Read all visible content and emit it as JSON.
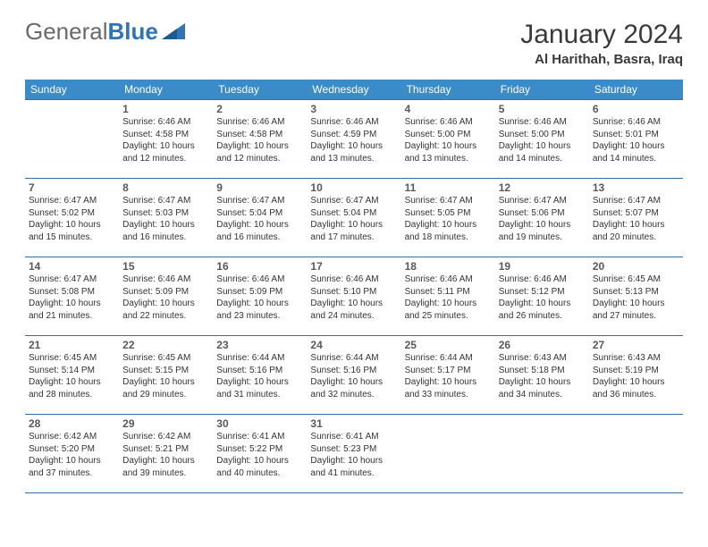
{
  "logo": {
    "text_general": "General",
    "text_blue": "Blue"
  },
  "title": "January 2024",
  "location": "Al Harithah, Basra, Iraq",
  "weekday_headers": [
    "Sunday",
    "Monday",
    "Tuesday",
    "Wednesday",
    "Thursday",
    "Friday",
    "Saturday"
  ],
  "colors": {
    "header_bg": "#3b8bc9",
    "header_text": "#ffffff",
    "cell_border": "#2d6fa8",
    "day_num": "#595959",
    "body_text": "#333333",
    "logo_gray": "#6a6a6a",
    "logo_blue": "#2d75b5"
  },
  "typography": {
    "title_fontsize": 30,
    "location_fontsize": 15,
    "header_fontsize": 12,
    "daynum_fontsize": 12,
    "body_fontsize": 10
  },
  "start_weekday": 1,
  "num_days": 31,
  "days": [
    {
      "n": 1,
      "sunrise": "6:46 AM",
      "sunset": "4:58 PM",
      "daylight": "10 hours and 12 minutes."
    },
    {
      "n": 2,
      "sunrise": "6:46 AM",
      "sunset": "4:58 PM",
      "daylight": "10 hours and 12 minutes."
    },
    {
      "n": 3,
      "sunrise": "6:46 AM",
      "sunset": "4:59 PM",
      "daylight": "10 hours and 13 minutes."
    },
    {
      "n": 4,
      "sunrise": "6:46 AM",
      "sunset": "5:00 PM",
      "daylight": "10 hours and 13 minutes."
    },
    {
      "n": 5,
      "sunrise": "6:46 AM",
      "sunset": "5:00 PM",
      "daylight": "10 hours and 14 minutes."
    },
    {
      "n": 6,
      "sunrise": "6:46 AM",
      "sunset": "5:01 PM",
      "daylight": "10 hours and 14 minutes."
    },
    {
      "n": 7,
      "sunrise": "6:47 AM",
      "sunset": "5:02 PM",
      "daylight": "10 hours and 15 minutes."
    },
    {
      "n": 8,
      "sunrise": "6:47 AM",
      "sunset": "5:03 PM",
      "daylight": "10 hours and 16 minutes."
    },
    {
      "n": 9,
      "sunrise": "6:47 AM",
      "sunset": "5:04 PM",
      "daylight": "10 hours and 16 minutes."
    },
    {
      "n": 10,
      "sunrise": "6:47 AM",
      "sunset": "5:04 PM",
      "daylight": "10 hours and 17 minutes."
    },
    {
      "n": 11,
      "sunrise": "6:47 AM",
      "sunset": "5:05 PM",
      "daylight": "10 hours and 18 minutes."
    },
    {
      "n": 12,
      "sunrise": "6:47 AM",
      "sunset": "5:06 PM",
      "daylight": "10 hours and 19 minutes."
    },
    {
      "n": 13,
      "sunrise": "6:47 AM",
      "sunset": "5:07 PM",
      "daylight": "10 hours and 20 minutes."
    },
    {
      "n": 14,
      "sunrise": "6:47 AM",
      "sunset": "5:08 PM",
      "daylight": "10 hours and 21 minutes."
    },
    {
      "n": 15,
      "sunrise": "6:46 AM",
      "sunset": "5:09 PM",
      "daylight": "10 hours and 22 minutes."
    },
    {
      "n": 16,
      "sunrise": "6:46 AM",
      "sunset": "5:09 PM",
      "daylight": "10 hours and 23 minutes."
    },
    {
      "n": 17,
      "sunrise": "6:46 AM",
      "sunset": "5:10 PM",
      "daylight": "10 hours and 24 minutes."
    },
    {
      "n": 18,
      "sunrise": "6:46 AM",
      "sunset": "5:11 PM",
      "daylight": "10 hours and 25 minutes."
    },
    {
      "n": 19,
      "sunrise": "6:46 AM",
      "sunset": "5:12 PM",
      "daylight": "10 hours and 26 minutes."
    },
    {
      "n": 20,
      "sunrise": "6:45 AM",
      "sunset": "5:13 PM",
      "daylight": "10 hours and 27 minutes."
    },
    {
      "n": 21,
      "sunrise": "6:45 AM",
      "sunset": "5:14 PM",
      "daylight": "10 hours and 28 minutes."
    },
    {
      "n": 22,
      "sunrise": "6:45 AM",
      "sunset": "5:15 PM",
      "daylight": "10 hours and 29 minutes."
    },
    {
      "n": 23,
      "sunrise": "6:44 AM",
      "sunset": "5:16 PM",
      "daylight": "10 hours and 31 minutes."
    },
    {
      "n": 24,
      "sunrise": "6:44 AM",
      "sunset": "5:16 PM",
      "daylight": "10 hours and 32 minutes."
    },
    {
      "n": 25,
      "sunrise": "6:44 AM",
      "sunset": "5:17 PM",
      "daylight": "10 hours and 33 minutes."
    },
    {
      "n": 26,
      "sunrise": "6:43 AM",
      "sunset": "5:18 PM",
      "daylight": "10 hours and 34 minutes."
    },
    {
      "n": 27,
      "sunrise": "6:43 AM",
      "sunset": "5:19 PM",
      "daylight": "10 hours and 36 minutes."
    },
    {
      "n": 28,
      "sunrise": "6:42 AM",
      "sunset": "5:20 PM",
      "daylight": "10 hours and 37 minutes."
    },
    {
      "n": 29,
      "sunrise": "6:42 AM",
      "sunset": "5:21 PM",
      "daylight": "10 hours and 39 minutes."
    },
    {
      "n": 30,
      "sunrise": "6:41 AM",
      "sunset": "5:22 PM",
      "daylight": "10 hours and 40 minutes."
    },
    {
      "n": 31,
      "sunrise": "6:41 AM",
      "sunset": "5:23 PM",
      "daylight": "10 hours and 41 minutes."
    }
  ],
  "labels": {
    "sunrise": "Sunrise:",
    "sunset": "Sunset:",
    "daylight": "Daylight:"
  }
}
